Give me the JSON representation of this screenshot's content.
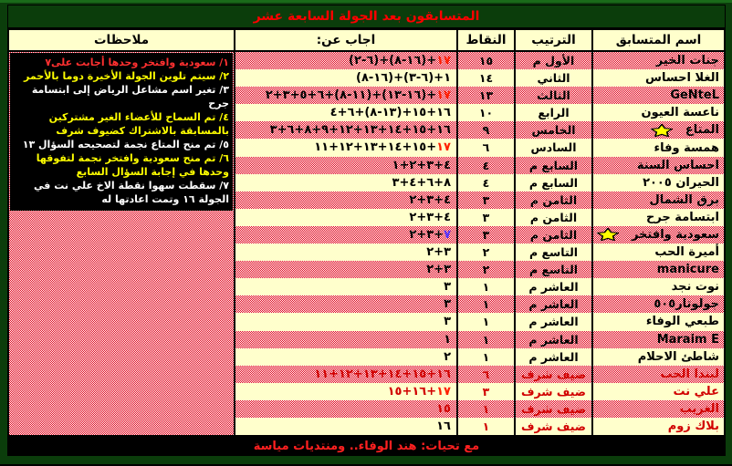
{
  "title": "المتسابقون بعد الجولة السابعة عشر",
  "footer": "مع تحيات: هند الوفاء.. ومنتديات مياسة",
  "header": {
    "name": "اسم المتسابق",
    "rank": "الترتيب",
    "points": "النقاط",
    "answered": "اجاب عن:",
    "notes": "ملاحظات"
  },
  "colors": {
    "checker_red": "#e00018",
    "pale_yellow": "#ffffcc",
    "dark_green": "#0b3d0b",
    "title_red": "#ff0000",
    "highlight_red": "#ff1f00",
    "guest_red": "#d10000",
    "blue_seven": "#5533ff",
    "note_red": "#ff3030",
    "note_yellow": "#ffff00",
    "note_white": "#ffffff",
    "star_yellow": "#ffff00"
  },
  "notes": [
    {
      "text": "١/ سعودية وافتخر وحدها أجابت على٧",
      "color": "red"
    },
    {
      "text": "٢/ سيتم تلوين الجولة الأخيرة دوما بالأحمر",
      "color": "yellow"
    },
    {
      "text": "٣/ تغير اسم مشاعل الرياض إلى ابتسامة جرح",
      "color": "white"
    },
    {
      "text": "٤/ تم السماح للأعضاء الغير مشتركين بالمسابقة بالاشتراك كضيوف شرف",
      "color": "yellow"
    },
    {
      "text": "٥/ تم منح المتاع نجمة لتصحيحه السؤال ١٣",
      "color": "white"
    },
    {
      "text": "٦/ تم منح سعودية وافتخر نجمة لتفوقها وحدها في إجابة السؤال السابع",
      "color": "yellow"
    },
    {
      "text": "٧/ سقطت سهوا نقطة الاخ علي نت في الجولة ١٦ وتمت اعادتها له",
      "color": "white"
    }
  ],
  "rows": [
    {
      "name": "جنات الخير",
      "star": false,
      "guest": false,
      "rank": "الأول م",
      "points": "١٥",
      "answered": [
        [
          "١٧",
          "hl"
        ],
        [
          "+(١٦-٨)+(٦-٢)",
          "k"
        ]
      ]
    },
    {
      "name": "الغلا احساس",
      "star": false,
      "guest": false,
      "rank": "الثاني",
      "points": "١٤",
      "answered": [
        [
          "(١٦-٨)+(٦-٣)+١",
          "k"
        ]
      ]
    },
    {
      "name": "GeNteL",
      "star": false,
      "guest": false,
      "rank": "الثالث",
      "points": "١٣",
      "answered": [
        [
          "١٧",
          "hl"
        ],
        [
          "+(١٦-١٣)+(١١-٨)+٦+٥+٣+٢",
          "k"
        ]
      ]
    },
    {
      "name": "ناعسة العيون",
      "star": false,
      "guest": false,
      "rank": "الرابع",
      "points": "١٠",
      "answered": [
        [
          "١٦+١٥+(١٣-٨)+٦+٤",
          "k"
        ]
      ]
    },
    {
      "name": "المتاع",
      "star": true,
      "guest": false,
      "rank": "الخامس",
      "points": "٩",
      "answered": [
        [
          "١٦+١٥+١٤+١٣+١٢+٩+٨+٦+٣",
          "k"
        ]
      ]
    },
    {
      "name": "همسة وفاء",
      "star": false,
      "guest": false,
      "rank": "السادس",
      "points": "٦",
      "answered": [
        [
          "١٧",
          "hl"
        ],
        [
          "+١٥+١٤+١٣+١٢+١١",
          "k"
        ]
      ]
    },
    {
      "name": "احساس السنة",
      "star": false,
      "guest": false,
      "rank": "السابع م",
      "points": "٤",
      "answered": [
        [
          "٤+٣+٢+١",
          "k"
        ]
      ]
    },
    {
      "name": "الحيران ٢٠٠٥",
      "star": false,
      "guest": false,
      "rank": "السابع م",
      "points": "٤",
      "answered": [
        [
          "٨+٦+٤+٣",
          "k"
        ]
      ]
    },
    {
      "name": "برق الشمال",
      "star": false,
      "guest": false,
      "rank": "الثامن م",
      "points": "٣",
      "answered": [
        [
          "٤+٣+٢",
          "k"
        ]
      ]
    },
    {
      "name": "ابتسامة جرح",
      "star": false,
      "guest": false,
      "rank": "الثامن م",
      "points": "٣",
      "answered": [
        [
          "٤+٣+٢",
          "k"
        ]
      ]
    },
    {
      "name": "سعودية وافتخر",
      "star": true,
      "guest": false,
      "rank": "الثامن م",
      "points": "٣",
      "answered": [
        [
          "٧",
          "blue"
        ],
        [
          "+٣+٢",
          "k"
        ]
      ]
    },
    {
      "name": "أميرة الحب",
      "star": false,
      "guest": false,
      "rank": "التاسع م",
      "points": "٢",
      "answered": [
        [
          "٣+٢",
          "k"
        ]
      ]
    },
    {
      "name": "manicure",
      "star": false,
      "guest": false,
      "rank": "التاسع م",
      "points": "٢",
      "answered": [
        [
          "٣+٢",
          "k"
        ]
      ]
    },
    {
      "name": "نوت نجد",
      "star": false,
      "guest": false,
      "rank": "العاشر م",
      "points": "١",
      "answered": [
        [
          "٣",
          "k"
        ]
      ]
    },
    {
      "name": "جولوتار٥٠٥",
      "star": false,
      "guest": false,
      "rank": "العاشر م",
      "points": "١",
      "answered": [
        [
          "٣",
          "k"
        ]
      ]
    },
    {
      "name": "طبعي الوفاء",
      "star": false,
      "guest": false,
      "rank": "العاشر م",
      "points": "١",
      "answered": [
        [
          "٣",
          "k"
        ]
      ]
    },
    {
      "name": "Maraim E",
      "star": false,
      "guest": false,
      "rank": "العاشر م",
      "points": "١",
      "answered": [
        [
          "١",
          "k"
        ]
      ]
    },
    {
      "name": "شاطئ الاحلام",
      "star": false,
      "guest": false,
      "rank": "العاشر م",
      "points": "١",
      "answered": [
        [
          "٢",
          "k"
        ]
      ]
    },
    {
      "name": "ليندا الحب",
      "star": false,
      "guest": true,
      "rank": "ضيف شرف",
      "points": "٦",
      "answered": [
        [
          "١٦+١٥+١٤+١٣+١٢+١١",
          "red"
        ]
      ]
    },
    {
      "name": "علي نت",
      "star": false,
      "guest": true,
      "rank": "ضيف شرف",
      "points": "٣",
      "answered": [
        [
          "١٧",
          "hl"
        ],
        [
          "+١٦+١٥",
          "red"
        ]
      ]
    },
    {
      "name": "الغريب",
      "star": false,
      "guest": true,
      "rank": "ضيف شرف",
      "points": "١",
      "answered": [
        [
          "١٥",
          "red"
        ]
      ]
    },
    {
      "name": "بلاك زوم",
      "star": false,
      "guest": true,
      "rank": "ضيف شرف",
      "points": "١",
      "answered": [
        [
          "١٦",
          "k"
        ]
      ]
    }
  ]
}
